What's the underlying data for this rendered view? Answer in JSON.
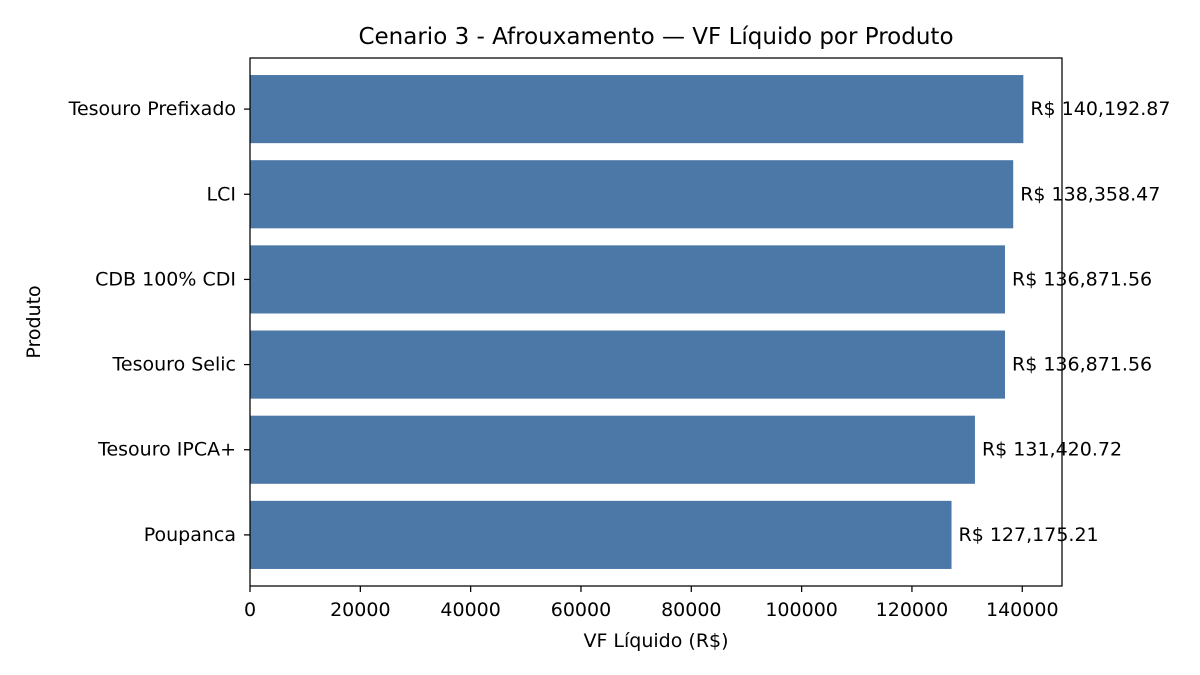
{
  "chart_data": {
    "type": "bar",
    "orientation": "horizontal",
    "title": "Cenario 3 - Afrouxamento — VF Líquido por Produto",
    "xlabel": "VF Líquido (R$)",
    "ylabel": "Produto",
    "categories": [
      "Tesouro Prefixado",
      "LCI",
      "CDB 100% CDI",
      "Tesouro Selic",
      "Tesouro IPCA+",
      "Poupanca"
    ],
    "values": [
      140192.87,
      138358.47,
      136871.56,
      136871.56,
      131420.72,
      127175.21
    ],
    "data_labels": [
      "R$ 140,192.87",
      "R$ 138,358.47",
      "R$ 136,871.56",
      "R$ 136,871.56",
      "R$ 131,420.72",
      "R$ 127,175.21"
    ],
    "xlim": [
      0,
      147202.5
    ],
    "xticks": [
      0,
      20000,
      40000,
      60000,
      80000,
      100000,
      120000,
      140000
    ],
    "xtick_labels": [
      "0",
      "20000",
      "40000",
      "60000",
      "80000",
      "100000",
      "120000",
      "140000"
    ],
    "bar_color": "#4c78a8",
    "grid": false,
    "legend": "none"
  }
}
